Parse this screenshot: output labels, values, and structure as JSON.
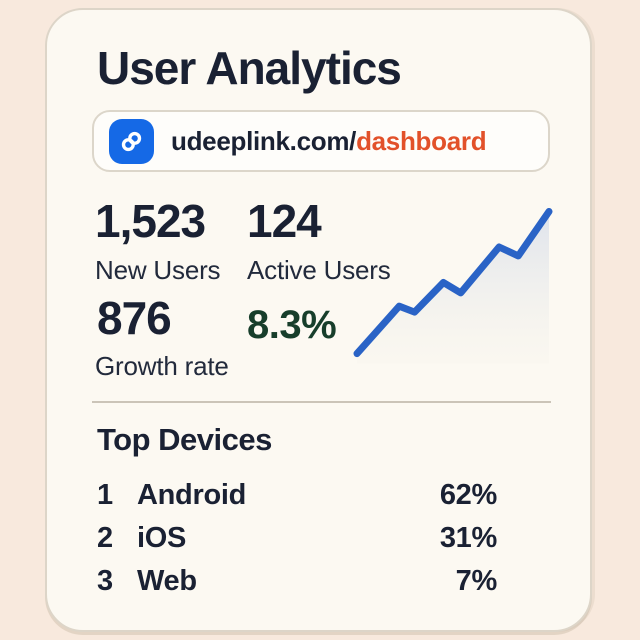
{
  "colors": {
    "page_bg": "#f8e9dd",
    "card_bg": "#fcf9f2",
    "text_primary": "#1a2133",
    "accent_orange": "#e2512a",
    "icon_blue": "#1569e6",
    "chart_line_blue": "#2a63c6",
    "growth_green": "#173e2b"
  },
  "card": {
    "title": "User Analytics"
  },
  "url_bar": {
    "icon": "link-icon",
    "domain": "udeeplink.com/",
    "path": "dashboard"
  },
  "stats": {
    "new_users": {
      "value": "1,523",
      "label": "New Users"
    },
    "active_users": {
      "value": "124",
      "label": "Active Users"
    },
    "growth": {
      "value": "876",
      "label": "Growth rate"
    },
    "growth_pct": {
      "value": "8.3%"
    }
  },
  "top_devices": {
    "title": "Top Devices",
    "rows": [
      {
        "rank": "1",
        "name": "Android",
        "share": "62%"
      },
      {
        "rank": "2",
        "name": "iOS",
        "share": "31%"
      },
      {
        "rank": "3",
        "name": "Web",
        "share": "7%"
      }
    ]
  },
  "chart_data": {
    "type": "line",
    "title": "",
    "xlabel": "",
    "ylabel": "",
    "x": [
      0,
      22,
      30,
      45,
      54,
      74,
      84,
      100
    ],
    "series": [
      {
        "name": "user growth trend",
        "values": [
          4,
          36,
          32,
          52,
          45,
          76,
          70,
          100
        ]
      }
    ],
    "xlim": [
      0,
      100
    ],
    "ylim": [
      0,
      100
    ],
    "grid": false,
    "legend": false,
    "axes_visible": false,
    "area_fill": true
  }
}
